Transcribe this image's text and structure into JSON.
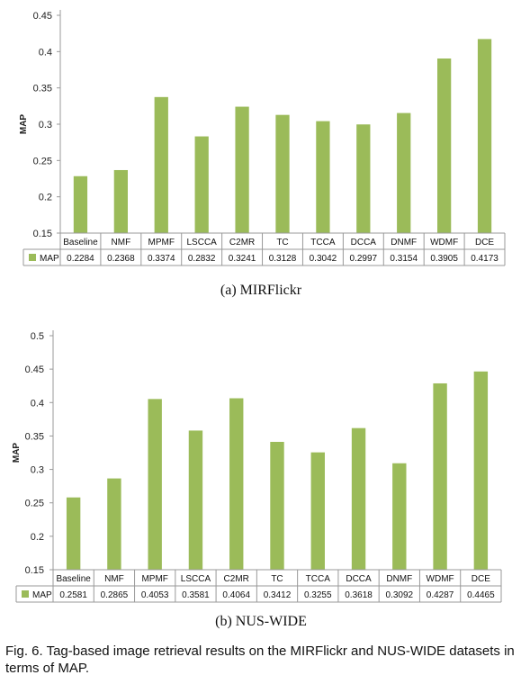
{
  "caption": "Fig. 6. Tag-based image retrieval results on the MIRFlickr and NUS-WIDE datasets in terms of MAP.",
  "bar_color": "#9bbb59",
  "chart_data": [
    {
      "type": "bar",
      "subcaption": "(a) MIRFlickr",
      "ylabel": "MAP",
      "ylim": [
        0.15,
        0.45
      ],
      "yticks": [
        "0.15",
        "0.2",
        "0.25",
        "0.3",
        "0.35",
        "0.4",
        "0.45"
      ],
      "categories": [
        "Baseline",
        "NMF",
        "MPMF",
        "LSCCA",
        "C2MR",
        "TC",
        "TCCA",
        "DCCA",
        "DNMF",
        "WDMF",
        "DCE"
      ],
      "series": [
        {
          "name": "MAP",
          "values": [
            0.2284,
            0.2368,
            0.3374,
            0.2832,
            0.3241,
            0.3128,
            0.3042,
            0.2997,
            0.3154,
            0.3905,
            0.4173
          ],
          "labels": [
            "0.2284",
            "0.2368",
            "0.3374",
            "0.2832",
            "0.3241",
            "0.3128",
            "0.3042",
            "0.2997",
            "0.3154",
            "0.3905",
            "0.4173"
          ]
        }
      ],
      "grid": false,
      "legend": "data-table"
    },
    {
      "type": "bar",
      "subcaption": "(b) NUS-WIDE",
      "ylabel": "MAP",
      "ylim": [
        0.15,
        0.5
      ],
      "yticks": [
        "0.15",
        "0.2",
        "0.25",
        "0.3",
        "0.35",
        "0.4",
        "0.45",
        "0.5"
      ],
      "categories": [
        "Baseline",
        "NMF",
        "MPMF",
        "LSCCA",
        "C2MR",
        "TC",
        "TCCA",
        "DCCA",
        "DNMF",
        "WDMF",
        "DCE"
      ],
      "series": [
        {
          "name": "MAP",
          "values": [
            0.2581,
            0.2865,
            0.4053,
            0.3581,
            0.4064,
            0.3412,
            0.3255,
            0.3618,
            0.3092,
            0.4287,
            0.4465
          ],
          "labels": [
            "0.2581",
            "0.2865",
            "0.4053",
            "0.3581",
            "0.4064",
            "0.3412",
            "0.3255",
            "0.3618",
            "0.3092",
            "0.4287",
            "0.4465"
          ]
        }
      ],
      "grid": false,
      "legend": "data-table"
    }
  ]
}
